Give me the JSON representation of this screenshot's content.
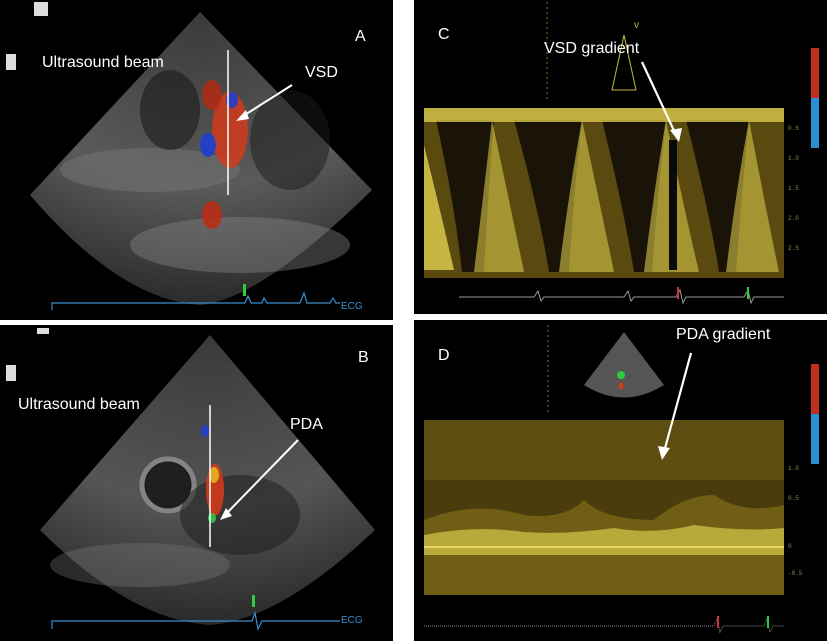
{
  "panels": {
    "A": {
      "letter": "A",
      "beam_label": "Ultrasound beam",
      "target_label": "VSD",
      "ecg_label": "ECG"
    },
    "B": {
      "letter": "B",
      "beam_label": "Ultrasound beam",
      "target_label": "PDA",
      "ecg_label": "ECG"
    },
    "C": {
      "letter": "C",
      "gradient_label": "VSD gradient"
    },
    "D": {
      "letter": "D",
      "gradient_label": "PDA gradient"
    }
  },
  "colors": {
    "background": "#000000",
    "doppler_yellow": "#d9c84a",
    "ecg_blue": "#3a8fd0",
    "color_flow_red": "#d23a1a",
    "color_flow_blue": "#1f3fd0",
    "annotation": "#ffffff"
  }
}
